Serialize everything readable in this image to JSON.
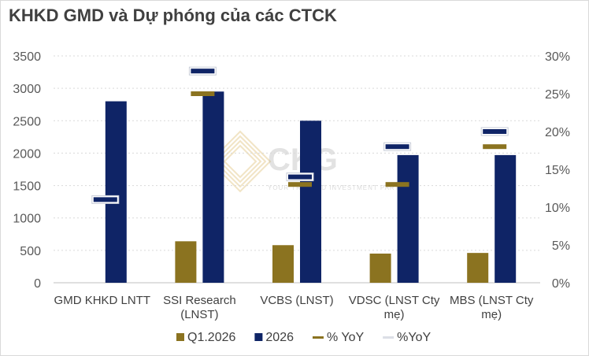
{
  "title": "KHKD GMD và Dự phóng của các CTCK",
  "chart_data": {
    "type": "bar",
    "categories": [
      [
        "GMD KHKD LNTT"
      ],
      [
        "SSI Research",
        "(LNST)"
      ],
      [
        "VCBS (LNST)"
      ],
      [
        "VDSC (LNST Cty",
        "mẹ)"
      ],
      [
        "MBS (LNST Cty",
        "mẹ)"
      ]
    ],
    "series": [
      {
        "name": "Q1.2026",
        "kind": "bar",
        "axis": "left",
        "color": "#8B7320",
        "values": [
          null,
          640,
          580,
          450,
          460
        ]
      },
      {
        "name": "2026",
        "kind": "bar",
        "axis": "left",
        "color": "#0F2466",
        "values": [
          2800,
          2950,
          2500,
          1970,
          1970
        ]
      },
      {
        "name": "% YoY",
        "kind": "marker",
        "axis": "right",
        "color": "#8B7320",
        "values": [
          null,
          0.25,
          0.13,
          0.13,
          0.18
        ]
      },
      {
        "name": "%YoY",
        "kind": "marker",
        "axis": "right",
        "color": "#0F2466",
        "values": [
          0.11,
          0.28,
          0.14,
          0.18,
          0.2
        ]
      }
    ],
    "y_left": {
      "min": 0,
      "max": 3500,
      "step": 500,
      "ticks": [
        "0",
        "500",
        "1000",
        "1500",
        "2000",
        "2500",
        "3000",
        "3500"
      ]
    },
    "y_right": {
      "min": 0,
      "max": 0.3,
      "step": 0.05,
      "ticks": [
        "0%",
        "5%",
        "10%",
        "15%",
        "20%",
        "25%",
        "30%"
      ]
    },
    "grid": true,
    "legend_position": "bottom"
  },
  "watermark": {
    "brand": "CKG",
    "tagline": "YOUR TRUSTED INVESTMENT PARTNER"
  }
}
